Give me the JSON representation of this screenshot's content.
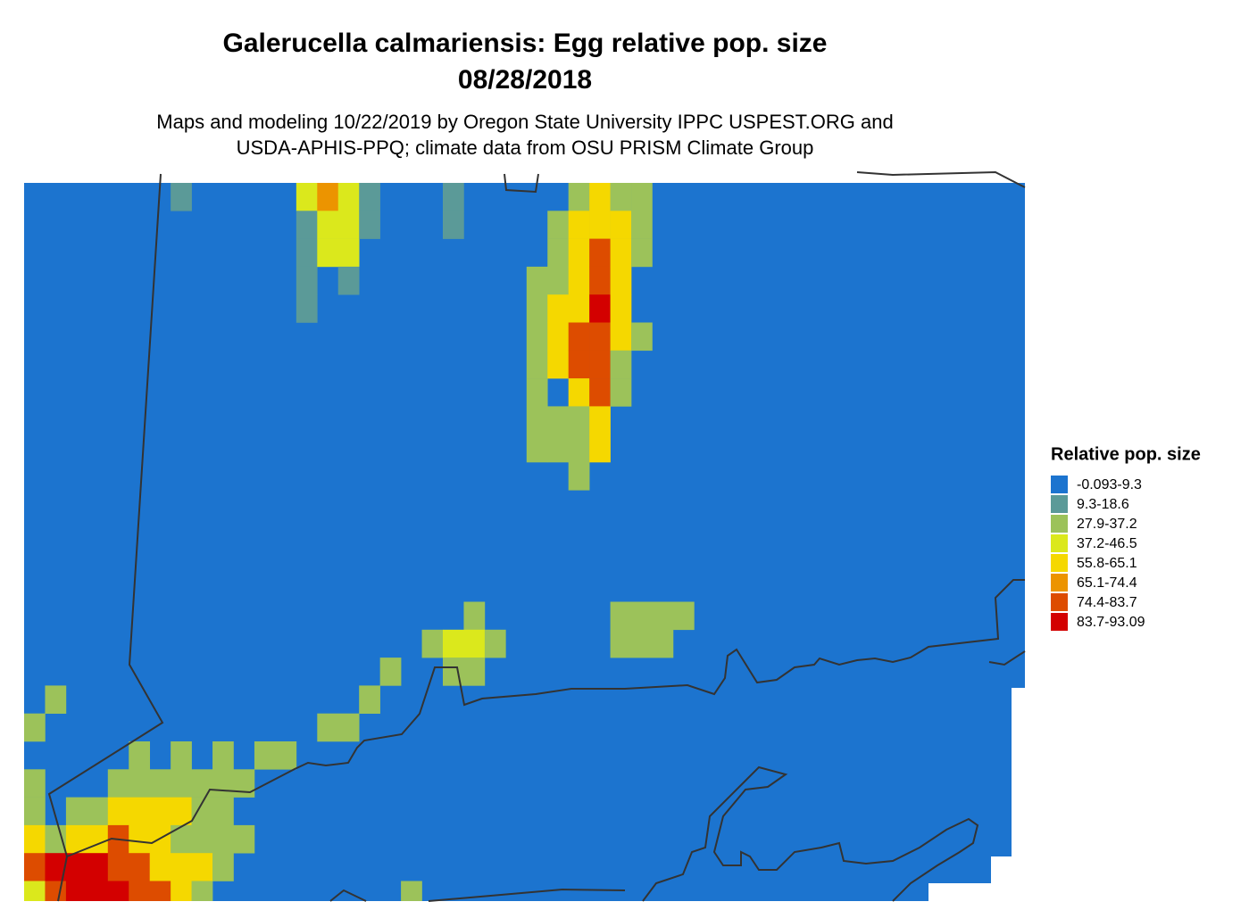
{
  "title": "Galerucella calmariensis: Egg relative pop. size",
  "date": "08/28/2018",
  "subtitle_lines": [
    "Maps and modeling 10/22/2019 by Oregon State University IPPC USPEST.ORG and",
    "USDA-APHIS-PPQ; climate data from OSU PRISM Climate Group"
  ],
  "legend": {
    "title": "Relative pop. size",
    "items": [
      {
        "label": "-0.093-9.3",
        "color": "#1c74cf"
      },
      {
        "label": "9.3-18.6",
        "color": "#5b9a98"
      },
      {
        "label": "27.9-37.2",
        "color": "#9cc25a"
      },
      {
        "label": "37.2-46.5",
        "color": "#dbe81c"
      },
      {
        "label": "55.8-65.1",
        "color": "#f5d800"
      },
      {
        "label": "65.1-74.4",
        "color": "#ec9400"
      },
      {
        "label": "74.4-83.7",
        "color": "#dd4c00"
      },
      {
        "label": "83.7-93.09",
        "color": "#d30000"
      }
    ]
  }
}
